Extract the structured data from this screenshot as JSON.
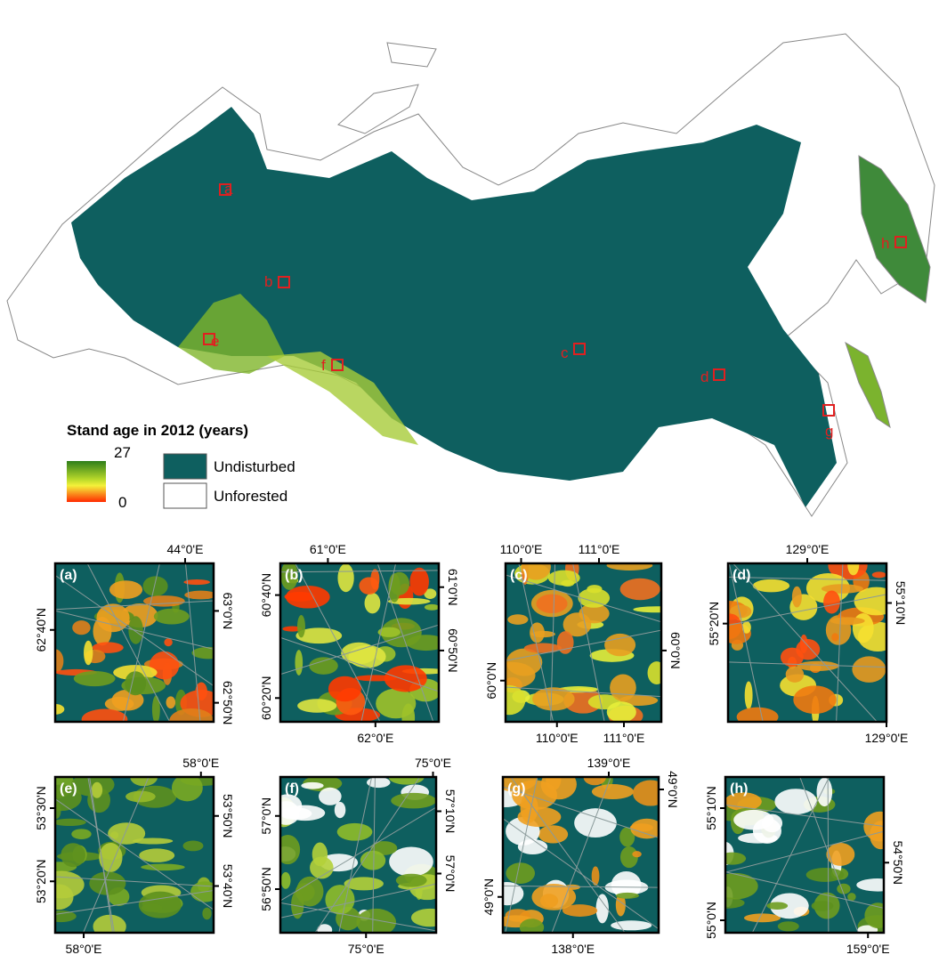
{
  "legend": {
    "title": "Stand age in 2012 (years)",
    "max": 27,
    "min": 0,
    "undisturbed": "Undisturbed",
    "unforested": "Unforested"
  },
  "map": {
    "regions": [
      "a",
      "b",
      "c",
      "d",
      "e",
      "f",
      "g",
      "h"
    ]
  },
  "panels": [
    {
      "label": "(a)",
      "top": [
        "44°0'E"
      ],
      "left": [
        "62°40'N"
      ],
      "right": [
        "63°0'N",
        "62°50'N"
      ],
      "bottom": []
    },
    {
      "label": "(b)",
      "top": [
        "61°0'E"
      ],
      "left": [
        "60°40'N",
        "60°20'N"
      ],
      "right": [
        "61°0'N",
        "60°50'N"
      ],
      "bottom": [
        "62°0'E"
      ]
    },
    {
      "label": "(c)",
      "top": [
        "110°0'E",
        "111°0'E"
      ],
      "left": [
        "60°0'N"
      ],
      "right": [
        "60°0'N"
      ],
      "bottom": [
        "110°0'E",
        "111°0'E"
      ]
    },
    {
      "label": "(d)",
      "top": [
        "129°0'E"
      ],
      "left": [
        "55°20'N"
      ],
      "right": [
        "55°10'N"
      ],
      "bottom": [
        "129°0'E"
      ]
    },
    {
      "label": "(e)",
      "top": [
        "58°0'E"
      ],
      "left": [
        "53°30'N",
        "53°20'N"
      ],
      "right": [
        "53°50'N",
        "53°40'N"
      ],
      "bottom": [
        "58°0'E"
      ]
    },
    {
      "label": "(f)",
      "top": [
        "75°0'E"
      ],
      "left": [
        "57°0'N",
        "56°50'N"
      ],
      "right": [
        "57°10'N",
        "57°0'N"
      ],
      "bottom": [
        "75°0'E"
      ]
    },
    {
      "label": "(g)",
      "top": [
        "139°0'E"
      ],
      "left": [
        "49°0'N"
      ],
      "right": [
        "49°0'N"
      ],
      "bottom": [
        "138°0'E"
      ]
    },
    {
      "label": "(h)",
      "top": [],
      "left": [
        "55°10'N",
        "55°0'N"
      ],
      "right": [
        "54°50'N"
      ],
      "bottom": [
        "159°0'E"
      ]
    }
  ]
}
